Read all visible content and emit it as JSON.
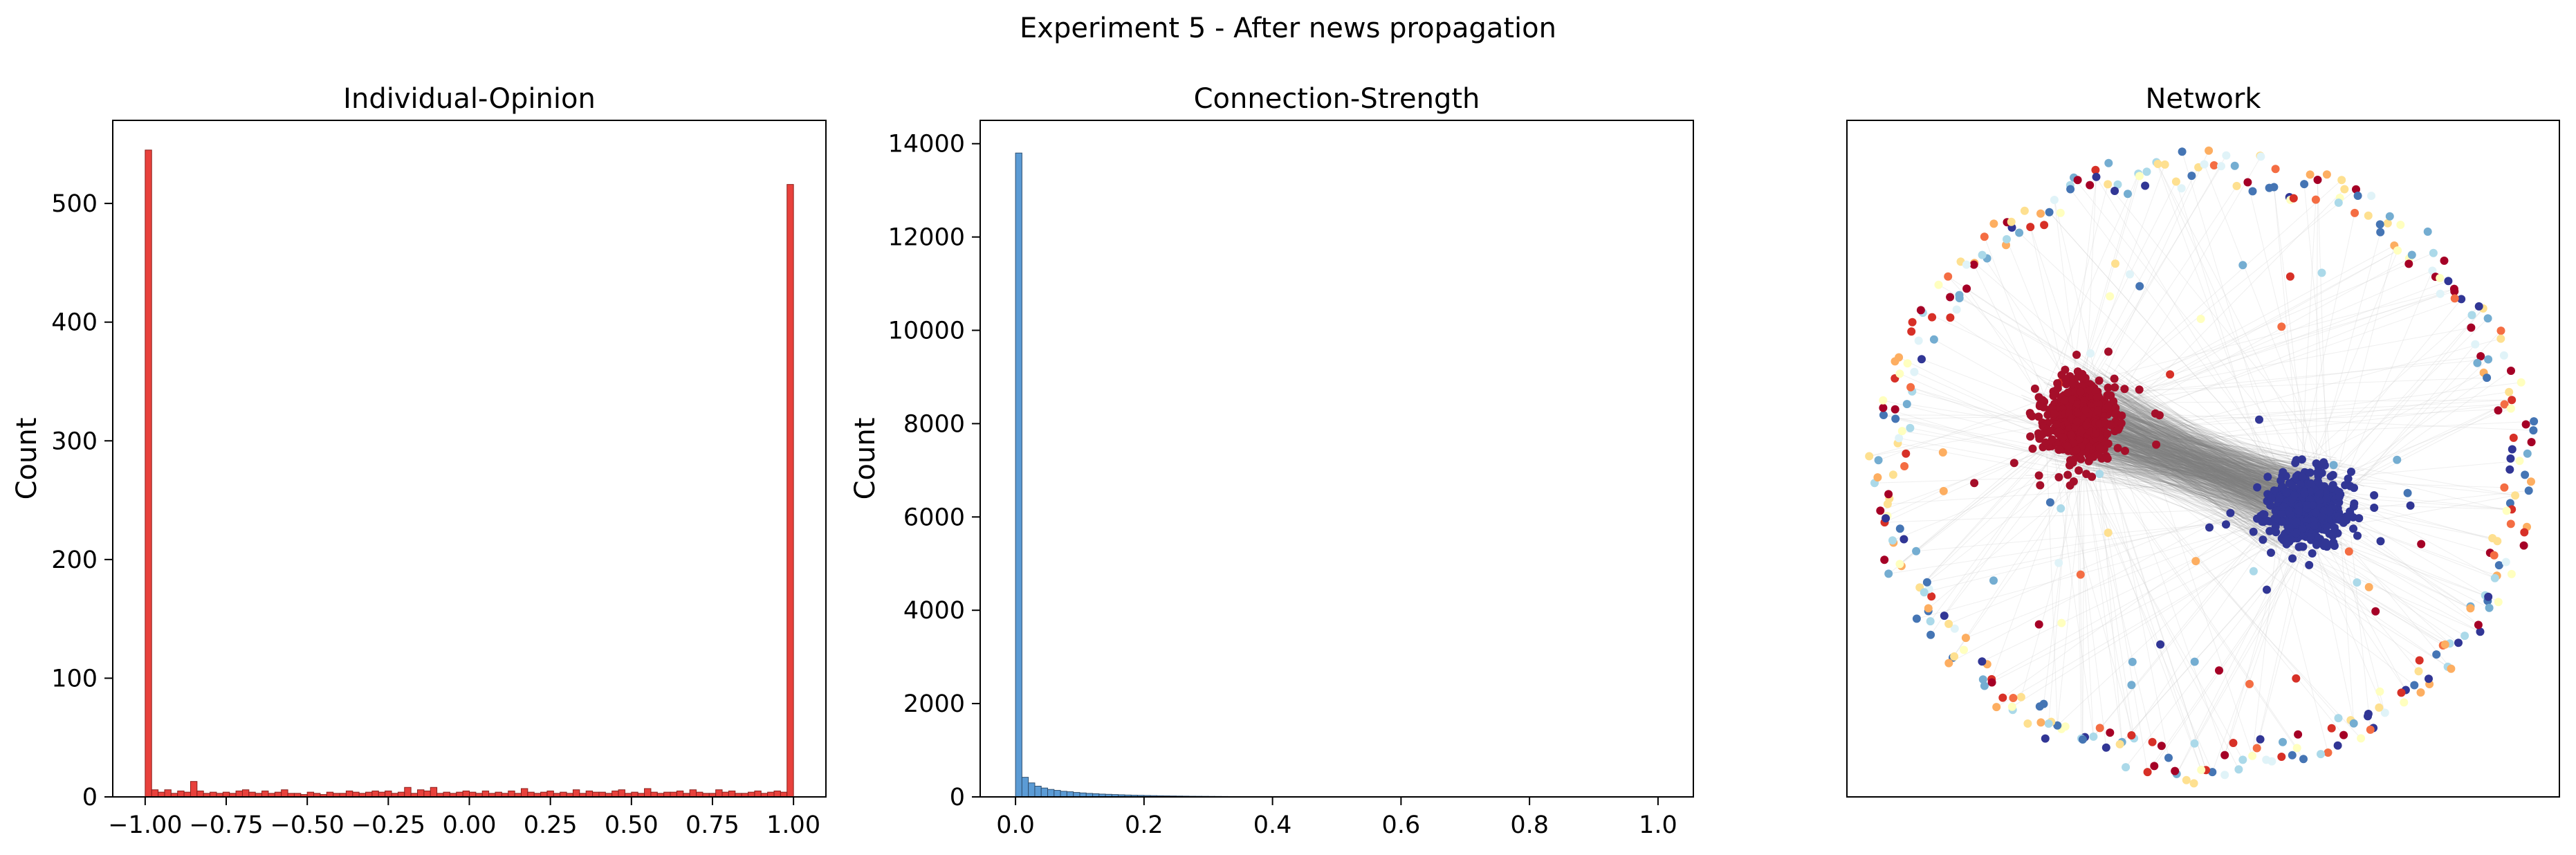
{
  "figure": {
    "suptitle": "Experiment 5 - After news propagation"
  },
  "chart_data": [
    {
      "type": "bar",
      "subtype": "histogram",
      "title": "Individual-Opinion",
      "xlabel": "",
      "ylabel": "Count",
      "xlim": [
        -1.1,
        1.1
      ],
      "ylim": [
        0,
        570
      ],
      "xticks": [
        -1.0,
        -0.75,
        -0.5,
        -0.25,
        0.0,
        0.25,
        0.5,
        0.75,
        1.0
      ],
      "xtick_labels": [
        "−1.00",
        "−0.75",
        "−0.50",
        "−0.25",
        "0.00",
        "0.25",
        "0.50",
        "0.75",
        "1.00"
      ],
      "yticks": [
        0,
        100,
        200,
        300,
        400,
        500
      ],
      "ytick_labels": [
        "0",
        "100",
        "200",
        "300",
        "400",
        "500"
      ],
      "color": "#e8413c",
      "edge_color": "#8b1e1a",
      "bin_start": -1.0,
      "bin_width": 0.02,
      "values": [
        545,
        6,
        4,
        6,
        3,
        5,
        4,
        13,
        5,
        3,
        4,
        3,
        4,
        3,
        5,
        6,
        4,
        3,
        5,
        3,
        4,
        6,
        3,
        3,
        2,
        4,
        3,
        2,
        4,
        3,
        3,
        5,
        4,
        3,
        4,
        5,
        4,
        5,
        3,
        4,
        8,
        3,
        6,
        5,
        8,
        3,
        4,
        3,
        4,
        5,
        4,
        3,
        5,
        3,
        4,
        3,
        5,
        3,
        7,
        4,
        3,
        4,
        5,
        3,
        4,
        3,
        6,
        3,
        5,
        4,
        4,
        3,
        5,
        6,
        3,
        4,
        3,
        7,
        4,
        3,
        4,
        4,
        5,
        3,
        6,
        4,
        3,
        3,
        6,
        4,
        5,
        3,
        3,
        4,
        5,
        3,
        4,
        5,
        4,
        516
      ],
      "grid": false
    },
    {
      "type": "bar",
      "subtype": "histogram",
      "title": "Connection-Strength",
      "xlabel": "",
      "ylabel": "Count",
      "xlim": [
        -0.055,
        1.055
      ],
      "ylim": [
        0,
        14500
      ],
      "xticks": [
        0.0,
        0.2,
        0.4,
        0.6,
        0.8,
        1.0
      ],
      "xtick_labels": [
        "0.0",
        "0.2",
        "0.4",
        "0.6",
        "0.8",
        "1.0"
      ],
      "yticks": [
        0,
        2000,
        4000,
        6000,
        8000,
        10000,
        12000,
        14000
      ],
      "ytick_labels": [
        "0",
        "2000",
        "4000",
        "6000",
        "8000",
        "10000",
        "12000",
        "14000"
      ],
      "color": "#5b9bd5",
      "edge_color": "#2f4f6f",
      "bin_start": 0.0,
      "bin_width": 0.01,
      "values": [
        13800,
        420,
        300,
        230,
        190,
        160,
        140,
        120,
        110,
        95,
        85,
        75,
        68,
        60,
        55,
        50,
        45,
        40,
        36,
        33,
        30,
        27,
        24,
        22,
        20,
        18,
        16,
        14,
        13,
        12,
        11,
        10,
        9,
        8,
        8,
        7,
        6,
        6,
        5,
        5,
        4,
        4,
        4,
        3,
        3,
        3,
        3,
        2,
        2,
        2
      ],
      "grid": false
    },
    {
      "type": "scatter",
      "subtype": "network-graph",
      "title": "Network",
      "xlabel": "",
      "ylabel": "",
      "axes_visible": false,
      "clusters": [
        {
          "name": "",
          "color": "#a50f2a",
          "approx_nodes": 520
        },
        {
          "name": "",
          "color": "#313695",
          "approx_nodes": 500
        }
      ],
      "ring_node_colors": [
        "#a50026",
        "#d73027",
        "#f46d43",
        "#fdae61",
        "#fee090",
        "#ffffbf",
        "#e0f3f8",
        "#abd9e9",
        "#74add1",
        "#4575b4",
        "#313695"
      ],
      "edge_color": "#7f7f7f"
    }
  ]
}
